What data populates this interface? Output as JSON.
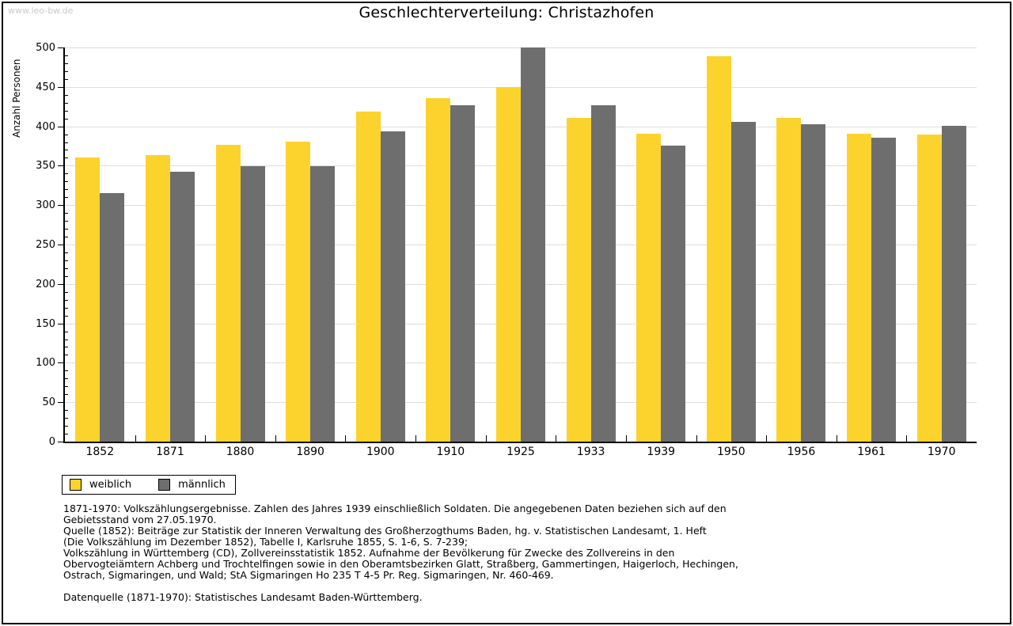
{
  "watermark": "www.leo-bw.de",
  "title": "Geschlechterverteilung: Christazhofen",
  "chart_data": {
    "type": "bar",
    "title": "Geschlechterverteilung: Christazhofen",
    "xlabel": "",
    "ylabel": "Anzahl Personen",
    "ylim": [
      0,
      500
    ],
    "ytick_step": 50,
    "minor_tick_step": 10,
    "grid": true,
    "legend_position": "bottom-left",
    "categories": [
      "1852",
      "1871",
      "1880",
      "1890",
      "1900",
      "1910",
      "1925",
      "1933",
      "1939",
      "1950",
      "1956",
      "1961",
      "1970"
    ],
    "series": [
      {
        "name": "weiblich",
        "color": "#fcd32d",
        "values": [
          360,
          363,
          377,
          381,
          419,
          436,
          450,
          411,
          391,
          489,
          411,
          391,
          390
        ]
      },
      {
        "name": "männlich",
        "color": "#6e6e6e",
        "values": [
          315,
          342,
          349,
          349,
          394,
          427,
          500,
          427,
          376,
          406,
          403,
          386,
          401
        ]
      }
    ]
  },
  "footnotes": {
    "lines": [
      "1871-1970: Volkszählungsergebnisse. Zahlen des Jahres 1939 einschließlich Soldaten. Die angegebenen Daten beziehen sich auf den",
      "Gebietsstand vom 27.05.1970.",
      "Quelle (1852): Beiträge zur Statistik der Inneren Verwaltung des Großherzogthums Baden, hg. v. Statistischen Landesamt, 1. Heft",
      "(Die Volkszählung im Dezember 1852), Tabelle I, Karlsruhe 1855, S. 1-6, S. 7-239;",
      "Volkszählung in Württemberg (CD), Zollvereinsstatistik 1852. Aufnahme der Bevölkerung für Zwecke des Zollvereins in den",
      "Obervogteiämtern Achberg und Trochtelfingen sowie in den Oberamtsbezirken Glatt, Straßberg, Gammertingen, Haigerloch, Hechingen,",
      "Ostrach, Sigmaringen, und Wald; StA Sigmaringen Ho 235 T 4-5 Pr. Reg. Sigmaringen, Nr. 460-469."
    ],
    "source": "Datenquelle (1871-1970): Statistisches Landesamt Baden-Württemberg."
  },
  "colors": {
    "weiblich": "#fcd32d",
    "männlich": "#6e6e6e",
    "gridline": "#dcdcdc",
    "watermark": "#c9c9c9",
    "frame": "#000000"
  }
}
